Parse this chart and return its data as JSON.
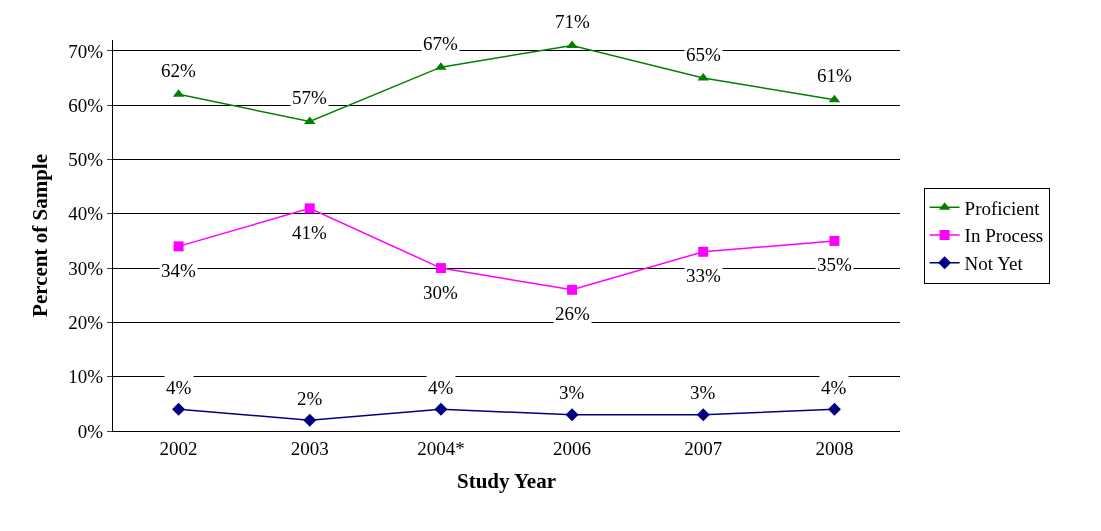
{
  "chart_data": {
    "type": "line",
    "xlabel": "Study Year",
    "ylabel": "Percent of Sample",
    "categories": [
      "2002",
      "2003",
      "2004*",
      "2006",
      "2007",
      "2008"
    ],
    "series": [
      {
        "name": "Proficient",
        "color": "#008000",
        "marker": "triangle",
        "values": [
          62,
          57,
          67,
          71,
          65,
          61
        ],
        "value_labels": [
          "62%",
          "57%",
          "67%",
          "71%",
          "65%",
          "61%"
        ]
      },
      {
        "name": "In Process",
        "color": "#ff00ff",
        "marker": "square",
        "values": [
          34,
          41,
          30,
          26,
          33,
          35
        ],
        "value_labels": [
          "34%",
          "41%",
          "30%",
          "26%",
          "33%",
          "35%"
        ]
      },
      {
        "name": "Not Yet",
        "color": "#000080",
        "marker": "diamond",
        "values": [
          4,
          2,
          4,
          3,
          3,
          4
        ],
        "value_labels": [
          "4%",
          "2%",
          "4%",
          "3%",
          "3%",
          "4%"
        ]
      }
    ],
    "ylim": [
      0,
      72
    ],
    "yticks": [
      {
        "value": 0,
        "label": "0%"
      },
      {
        "value": 10,
        "label": "10%"
      },
      {
        "value": 20,
        "label": "20%"
      },
      {
        "value": 30,
        "label": "30%"
      },
      {
        "value": 40,
        "label": "40%"
      },
      {
        "value": 50,
        "label": "50%"
      },
      {
        "value": 60,
        "label": "60%"
      },
      {
        "value": 70,
        "label": "70%"
      }
    ],
    "grid": "y",
    "legend": "right"
  }
}
